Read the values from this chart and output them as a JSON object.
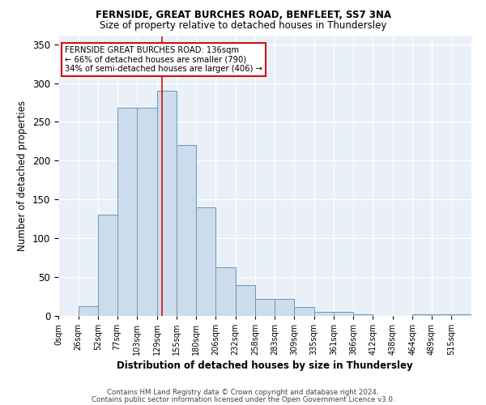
{
  "title1": "FERNSIDE, GREAT BURCHES ROAD, BENFLEET, SS7 3NA",
  "title2": "Size of property relative to detached houses in Thundersley",
  "xlabel": "Distribution of detached houses by size in Thundersley",
  "ylabel": "Number of detached properties",
  "bar_labels": [
    "0sqm",
    "26sqm",
    "52sqm",
    "77sqm",
    "103sqm",
    "129sqm",
    "155sqm",
    "180sqm",
    "206sqm",
    "232sqm",
    "258sqm",
    "283sqm",
    "309sqm",
    "335sqm",
    "361sqm",
    "386sqm",
    "412sqm",
    "438sqm",
    "464sqm",
    "489sqm",
    "515sqm"
  ],
  "bar_values": [
    0,
    13,
    130,
    268,
    268,
    290,
    220,
    140,
    63,
    40,
    22,
    22,
    12,
    5,
    5,
    2,
    0,
    0,
    2,
    2,
    2
  ],
  "bar_color": "#ccdcec",
  "bar_edge_color": "#6699bb",
  "bg_color": "#eaf0f8",
  "grid_color": "#ffffff",
  "property_line_x": 136,
  "annotation_text": "FERNSIDE GREAT BURCHES ROAD: 136sqm\n← 66% of detached houses are smaller (790)\n34% of semi-detached houses are larger (406) →",
  "footer1": "Contains HM Land Registry data © Crown copyright and database right 2024.",
  "footer2": "Contains public sector information licensed under the Open Government Licence v3.0.",
  "ylim": [
    0,
    360
  ],
  "yticks": [
    0,
    50,
    100,
    150,
    200,
    250,
    300,
    350
  ],
  "bin_edges": [
    0,
    26,
    52,
    77,
    103,
    129,
    155,
    180,
    206,
    232,
    258,
    283,
    309,
    335,
    361,
    386,
    412,
    438,
    464,
    489,
    515,
    541
  ]
}
